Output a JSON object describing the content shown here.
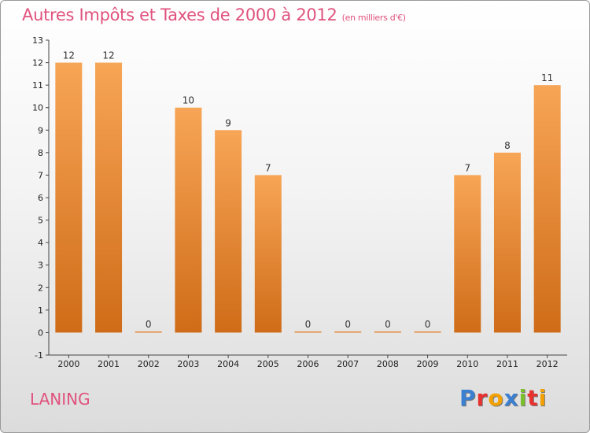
{
  "header": {
    "title": "Autres Impôts et Taxes de 2000 à 2012",
    "unit": "(en milliers d'€)"
  },
  "footer": {
    "commune": "LANING",
    "brand_letters": [
      {
        "ch": "P",
        "color": "#3a7fd0"
      },
      {
        "ch": "r",
        "color": "#e8312f"
      },
      {
        "ch": "o",
        "color": "#f2a100"
      },
      {
        "ch": "x",
        "color": "#3a7fd0"
      },
      {
        "ch": "i",
        "color": "#7bbf2c"
      },
      {
        "ch": "t",
        "color": "#e8312f"
      },
      {
        "ch": "i",
        "color": "#f2a100"
      }
    ]
  },
  "chart_data": {
    "type": "bar",
    "categories": [
      "2000",
      "2001",
      "2002",
      "2003",
      "2004",
      "2005",
      "2006",
      "2007",
      "2008",
      "2009",
      "2010",
      "2011",
      "2012"
    ],
    "values": [
      12,
      12,
      0,
      10,
      9,
      7,
      0,
      0,
      0,
      0,
      7,
      8,
      11
    ],
    "ylim": [
      -1,
      13
    ],
    "yticks": [
      -1,
      0,
      1,
      2,
      3,
      4,
      5,
      6,
      7,
      8,
      9,
      10,
      11,
      12,
      13
    ],
    "grid": false,
    "legend": "none",
    "bar_color_light": "#f7a556",
    "bar_color_dark": "#cf6c18",
    "axis_color": "#444444"
  }
}
